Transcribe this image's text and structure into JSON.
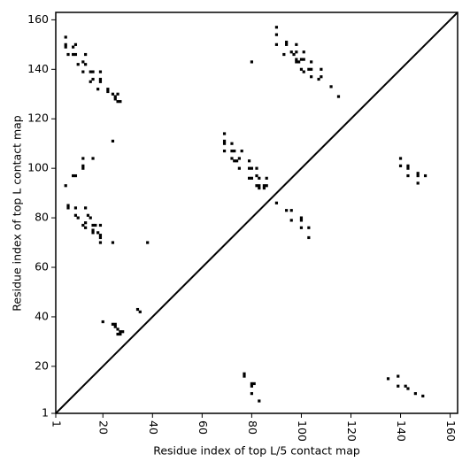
{
  "chart_data": {
    "type": "scatter",
    "x_label": "Residue index of top L/5 contact map",
    "y_label": "Residue index of top L contact map",
    "xlim": [
      1,
      163
    ],
    "ylim": [
      1,
      163
    ],
    "xticks": [
      1,
      20,
      40,
      60,
      80,
      100,
      120,
      140,
      160
    ],
    "yticks": [
      1,
      20,
      40,
      60,
      80,
      100,
      120,
      140,
      160
    ],
    "diagonal": true,
    "series": [
      {
        "color": "#000000",
        "x": [
          5,
          5,
          5,
          6,
          8,
          9,
          8,
          9,
          10,
          12,
          13,
          13,
          15,
          16,
          16,
          15,
          19,
          19,
          19,
          12,
          22,
          22,
          24,
          25,
          26,
          25,
          26,
          27,
          18,
          24,
          5,
          6,
          6,
          8,
          9,
          9,
          9,
          10,
          12,
          12,
          12,
          13,
          14,
          13,
          12,
          13,
          15,
          16,
          17,
          16,
          16,
          18,
          19,
          19,
          19,
          19,
          16,
          24,
          38,
          20,
          24,
          25,
          25,
          26,
          27,
          26,
          27,
          28,
          34,
          35,
          69,
          69,
          69,
          69,
          72,
          72,
          73,
          72,
          73,
          74,
          75,
          76,
          75,
          79,
          79,
          80,
          79,
          80,
          82,
          82,
          83,
          82,
          83,
          83,
          85,
          86,
          86,
          85,
          90,
          94,
          96,
          96,
          100,
          100,
          100,
          103,
          103,
          80,
          90,
          90,
          90,
          93,
          94,
          94,
          96,
          97,
          98,
          98,
          98,
          99,
          98,
          100,
          101,
          101,
          100,
          101,
          103,
          104,
          104,
          104,
          107,
          108,
          108,
          112,
          115,
          140,
          140,
          143,
          143,
          143,
          147,
          147,
          147,
          150,
          77,
          77,
          80,
          81,
          80,
          80,
          83,
          135,
          139,
          139,
          142,
          143,
          146,
          149
        ],
        "y": [
          153,
          150,
          149,
          146,
          146,
          150,
          149,
          146,
          142,
          143,
          146,
          142,
          139,
          139,
          136,
          135,
          139,
          136,
          135,
          139,
          132,
          131,
          130,
          129,
          130,
          128,
          127,
          127,
          132,
          111,
          93,
          85,
          84,
          97,
          97,
          84,
          81,
          80,
          104,
          101,
          100,
          84,
          81,
          78,
          77,
          76,
          80,
          77,
          77,
          75,
          74,
          74,
          77,
          73,
          72,
          70,
          104,
          70,
          70,
          38,
          37,
          37,
          36,
          35,
          34,
          33,
          33,
          34,
          43,
          42,
          114,
          111,
          110,
          107,
          110,
          107,
          107,
          104,
          103,
          103,
          104,
          107,
          100,
          103,
          100,
          100,
          96,
          96,
          97,
          100,
          96,
          93,
          93,
          92,
          93,
          93,
          96,
          92,
          86,
          83,
          83,
          79,
          80,
          79,
          76,
          76,
          72,
          143,
          157,
          154,
          150,
          146,
          150,
          151,
          147,
          146,
          147,
          144,
          143,
          143,
          150,
          144,
          144,
          147,
          140,
          139,
          140,
          143,
          140,
          137,
          136,
          137,
          140,
          133,
          129,
          104,
          101,
          101,
          100,
          97,
          98,
          97,
          94,
          97,
          17,
          16,
          13,
          13,
          12,
          9,
          6,
          15,
          16,
          12,
          12,
          11,
          9,
          8
        ]
      }
    ]
  }
}
